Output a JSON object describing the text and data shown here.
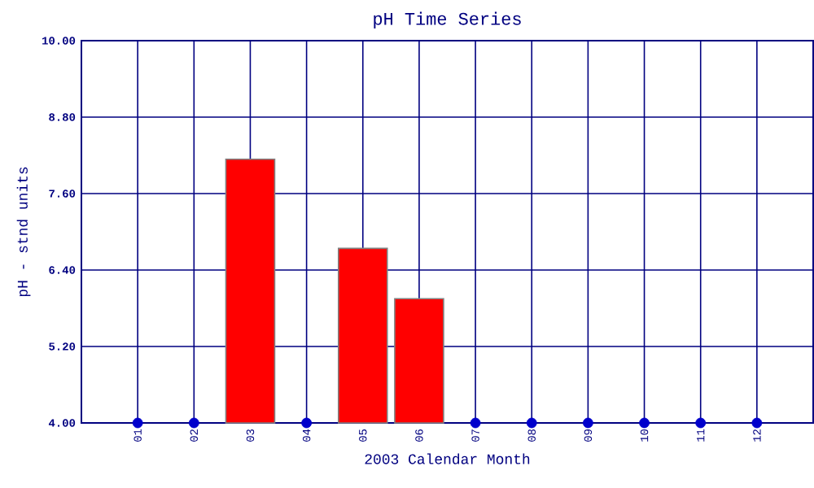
{
  "chart_data": {
    "type": "bar",
    "title": "pH Time Series",
    "xlabel": "2003 Calendar Month",
    "ylabel": "pH - stnd units",
    "categories": [
      "01",
      "02",
      "03",
      "04",
      "05",
      "06",
      "07",
      "08",
      "09",
      "10",
      "11",
      "12"
    ],
    "series": [
      {
        "color": "#ff0000",
        "values": [
          null,
          null,
          8.14,
          null,
          6.74,
          5.95,
          null,
          null,
          null,
          null,
          null,
          null
        ]
      },
      {
        "type": "scatter",
        "color": "#0000cc",
        "marker": "circle",
        "values": [
          4.0,
          4.0,
          null,
          4.0,
          null,
          null,
          4.0,
          4.0,
          4.0,
          4.0,
          4.0,
          4.0
        ]
      }
    ],
    "ylim": [
      4.0,
      10.0
    ],
    "yticks": [
      {
        "value": 4.0,
        "label": "4.00"
      },
      {
        "value": 5.2,
        "label": "5.20"
      },
      {
        "value": 6.4,
        "label": "6.40"
      },
      {
        "value": 7.6,
        "label": "7.60"
      },
      {
        "value": 8.8,
        "label": "8.80"
      },
      {
        "value": 10.0,
        "label": "10.00"
      }
    ],
    "grid": true
  }
}
